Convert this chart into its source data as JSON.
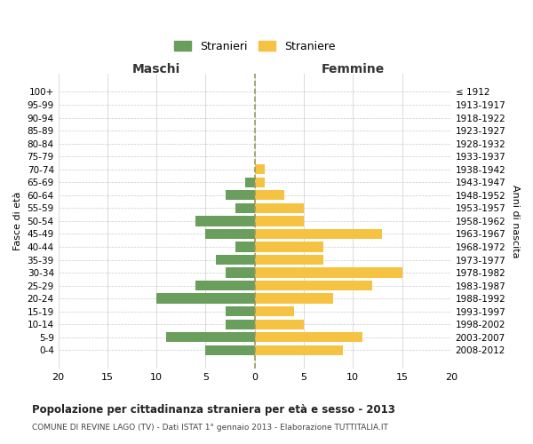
{
  "age_groups": [
    "100+",
    "95-99",
    "90-94",
    "85-89",
    "80-84",
    "75-79",
    "70-74",
    "65-69",
    "60-64",
    "55-59",
    "50-54",
    "45-49",
    "40-44",
    "35-39",
    "30-34",
    "25-29",
    "20-24",
    "15-19",
    "10-14",
    "5-9",
    "0-4"
  ],
  "birth_years": [
    "≤ 1912",
    "1913-1917",
    "1918-1922",
    "1923-1927",
    "1928-1932",
    "1933-1937",
    "1938-1942",
    "1943-1947",
    "1948-1952",
    "1953-1957",
    "1958-1962",
    "1963-1967",
    "1968-1972",
    "1973-1977",
    "1978-1982",
    "1983-1987",
    "1988-1992",
    "1993-1997",
    "1998-2002",
    "2003-2007",
    "2008-2012"
  ],
  "maschi": [
    0,
    0,
    0,
    0,
    0,
    0,
    0,
    1,
    3,
    2,
    6,
    5,
    2,
    4,
    3,
    6,
    10,
    3,
    3,
    9,
    5
  ],
  "femmine": [
    0,
    0,
    0,
    0,
    0,
    0,
    1,
    1,
    3,
    5,
    5,
    13,
    7,
    7,
    15,
    12,
    8,
    4,
    5,
    11,
    9
  ],
  "maschi_color": "#6a9e5c",
  "femmine_color": "#f5c242",
  "title": "Popolazione per cittadinanza straniera per età e sesso - 2013",
  "subtitle": "COMUNE DI REVINE LAGO (TV) - Dati ISTAT 1° gennaio 2013 - Elaborazione TUTTITALIA.IT",
  "xlabel_left": "Maschi",
  "xlabel_right": "Femmine",
  "ylabel_left": "Fasce di età",
  "ylabel_right": "Anni di nascita",
  "legend_maschi": "Stranieri",
  "legend_femmine": "Straniere",
  "xlim": 20,
  "background_color": "#ffffff",
  "grid_color": "#cccccc"
}
